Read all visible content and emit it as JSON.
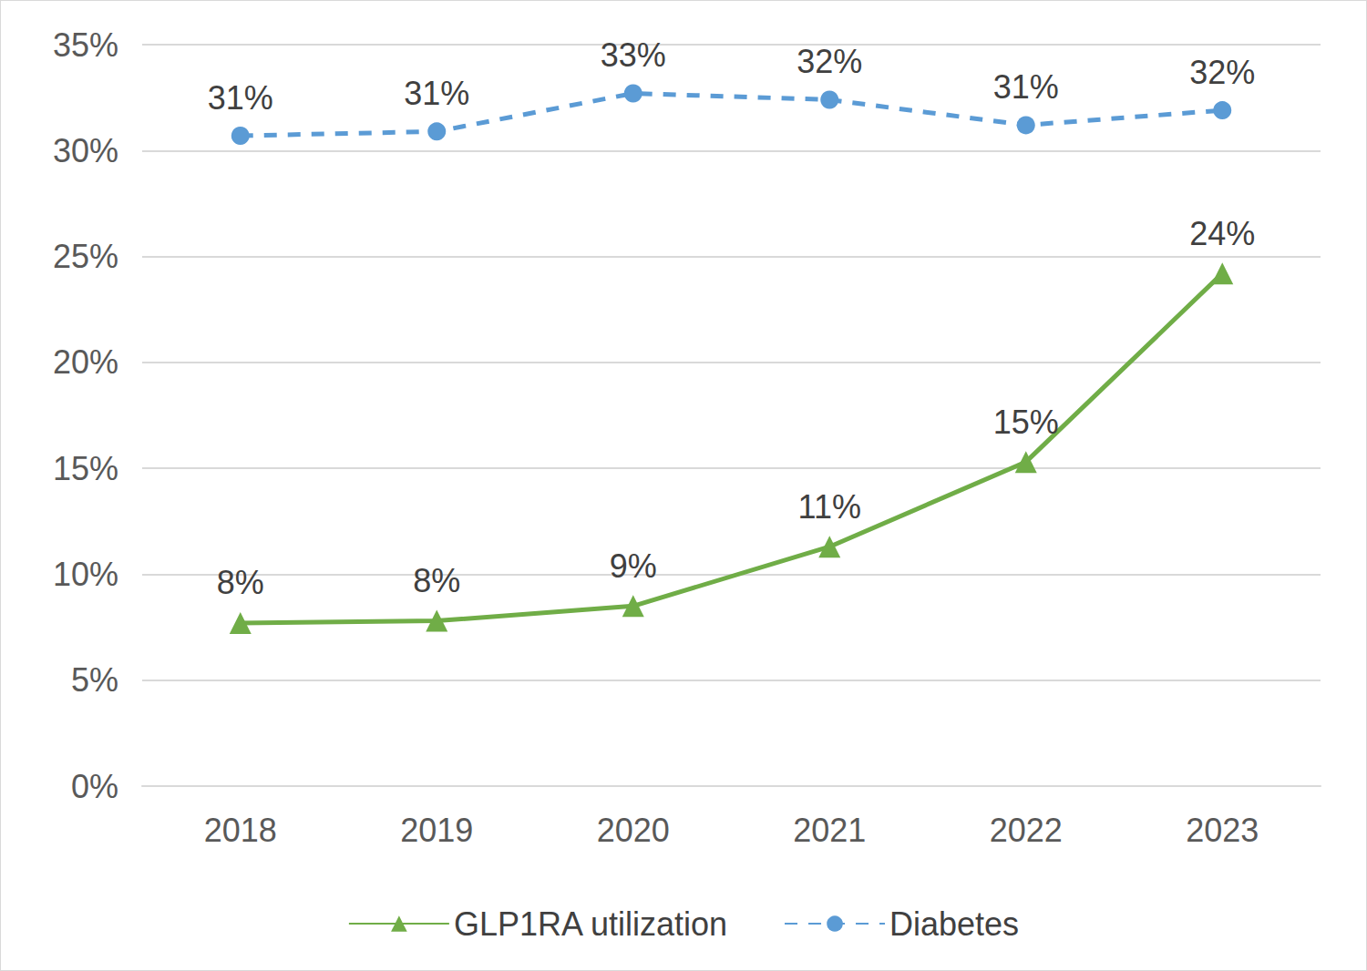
{
  "chart_data": {
    "type": "line",
    "categories": [
      "2018",
      "2019",
      "2020",
      "2021",
      "2022",
      "2023"
    ],
    "series": [
      {
        "name": "GLP1RA utilization",
        "color": "#70ad47",
        "marker": "triangle",
        "line_style": "solid",
        "values": [
          7.7,
          7.8,
          8.5,
          11.3,
          15.3,
          24.2
        ],
        "value_labels": [
          "8%",
          "8%",
          "9%",
          "11%",
          "15%",
          "24%"
        ]
      },
      {
        "name": "Diabetes",
        "color": "#5b9bd5",
        "marker": "circle",
        "line_style": "dashed",
        "values": [
          30.7,
          30.9,
          32.7,
          32.4,
          31.2,
          31.9
        ],
        "value_labels": [
          "31%",
          "31%",
          "33%",
          "32%",
          "31%",
          "32%"
        ]
      }
    ],
    "ylim": [
      0,
      35
    ],
    "yticks": [
      {
        "value": 0,
        "label": "0%"
      },
      {
        "value": 5,
        "label": "5%"
      },
      {
        "value": 10,
        "label": "10%"
      },
      {
        "value": 15,
        "label": "15%"
      },
      {
        "value": 20,
        "label": "20%"
      },
      {
        "value": 25,
        "label": "25%"
      },
      {
        "value": 30,
        "label": "30%"
      },
      {
        "value": 35,
        "label": "35%"
      }
    ],
    "grid": true,
    "legend": "bottom",
    "data_labels": true
  }
}
